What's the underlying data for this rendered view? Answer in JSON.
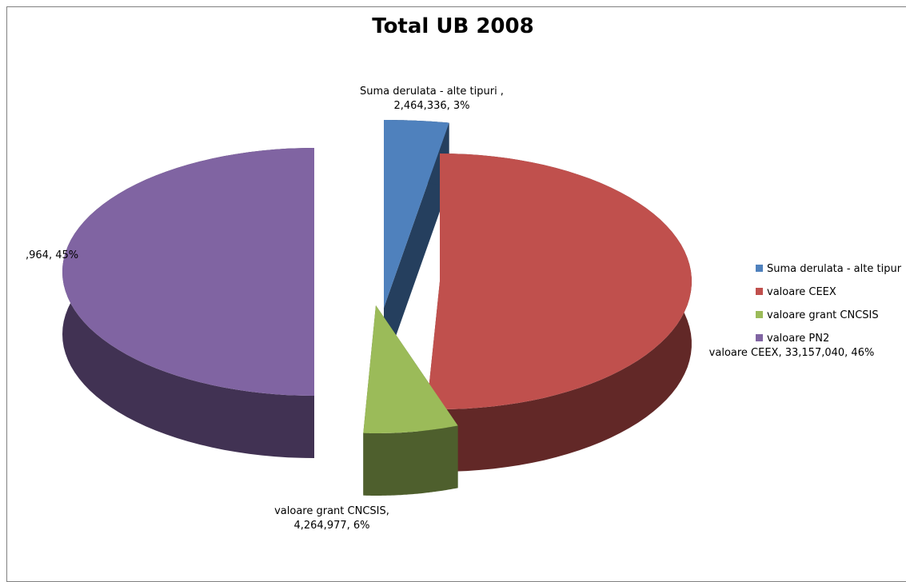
{
  "chart_data": {
    "type": "pie",
    "title": "Total UB 2008",
    "three_d": true,
    "exploded": true,
    "legend_position": "right",
    "slices": [
      {
        "name": "Suma derulata - alte tipuri",
        "value": 2464336,
        "percent": 3,
        "color": "#4f81bd",
        "side_color": "#253f5e",
        "label_lines": [
          "Suma derulata - alte tipuri ,",
          "2,464,336, 3%"
        ]
      },
      {
        "name": "valoare CEEX",
        "value": 33157040,
        "percent": 46,
        "color": "#c0504d",
        "side_color": "#622827",
        "label_lines": [
          "valoare CEEX, 33,157,040, 46%"
        ]
      },
      {
        "name": "valoare grant CNCSIS",
        "value": 4264977,
        "percent": 6,
        "color": "#9bbb59",
        "side_color": "#4e5f2d",
        "label_lines": [
          "valoare grant CNCSIS,",
          "4,264,977, 6%"
        ]
      },
      {
        "name": "valoare PN2",
        "value": null,
        "percent": 45,
        "color": "#8064a2",
        "side_color": "#413253",
        "label_lines": [
          ",964, 45%"
        ]
      }
    ],
    "legend_entries": [
      "Suma derulata - alte tipur",
      "valoare CEEX",
      "valoare grant CNCSIS",
      "valoare PN2"
    ]
  }
}
